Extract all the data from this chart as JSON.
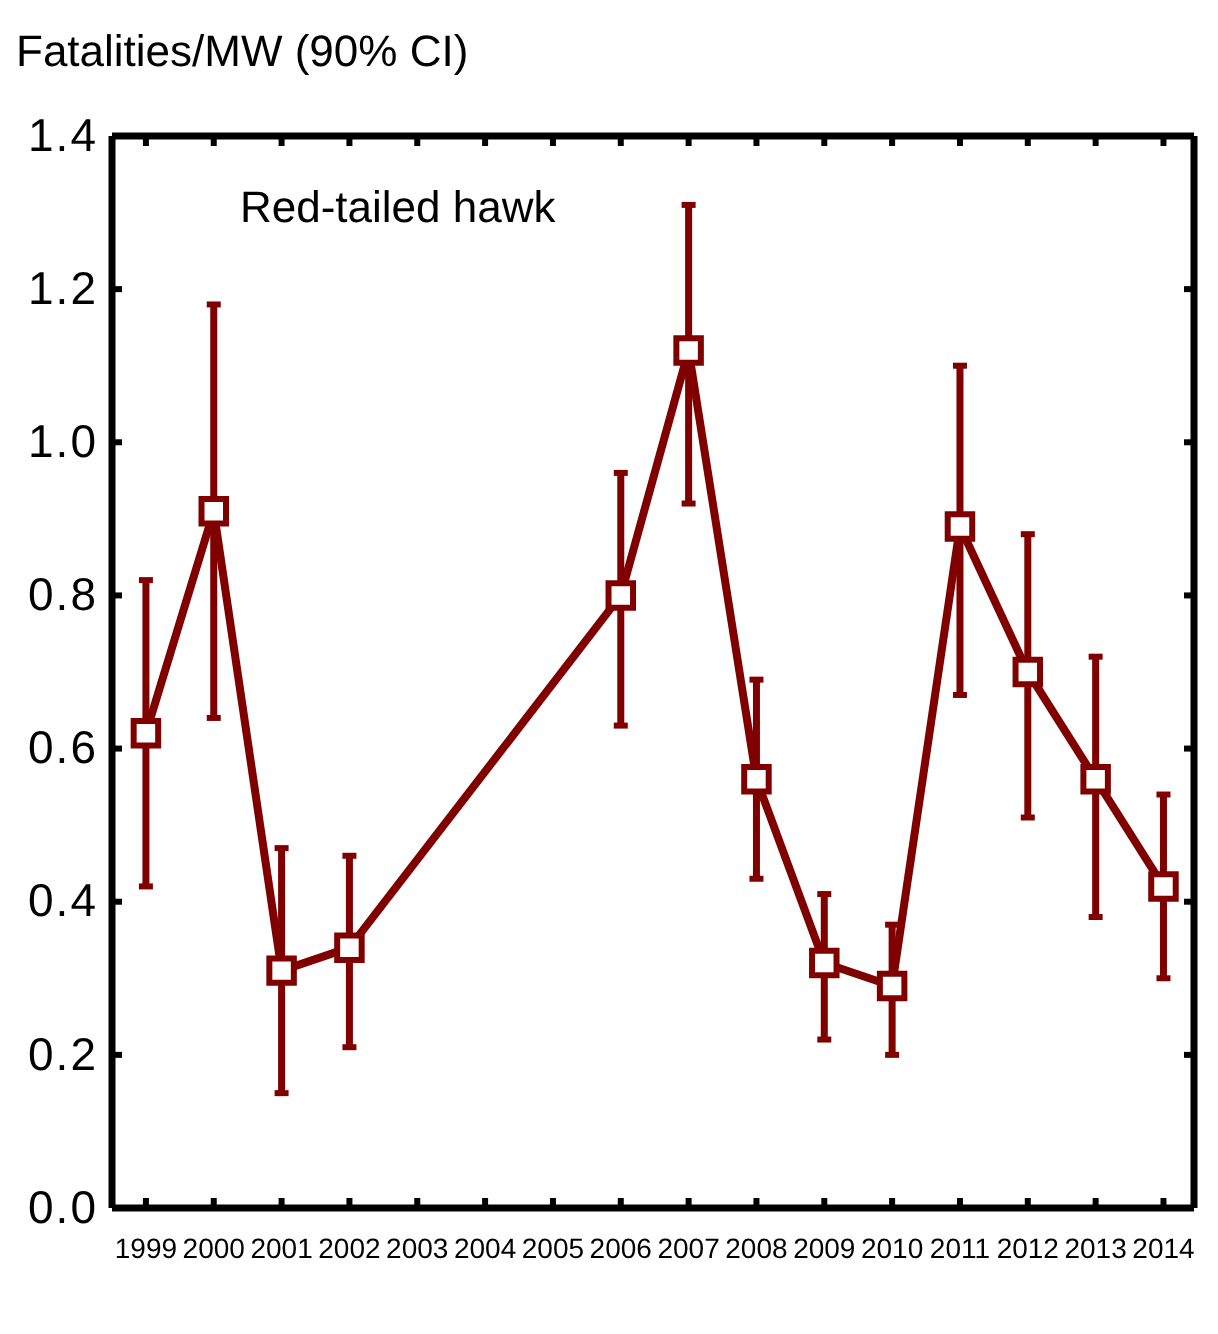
{
  "chart_data": {
    "type": "line",
    "ylabel": "Fatalities/MW (90% CI)",
    "annotations": [
      "Red-tailed hawk"
    ],
    "x": [
      1999,
      2000,
      2001,
      2002,
      2006,
      2007,
      2008,
      2009,
      2010,
      2011,
      2012,
      2013,
      2014
    ],
    "values": [
      0.62,
      0.91,
      0.31,
      0.34,
      0.8,
      1.12,
      0.56,
      0.32,
      0.29,
      0.89,
      0.7,
      0.56,
      0.42
    ],
    "errors": [
      [
        0.42,
        0.82
      ],
      [
        0.64,
        1.18
      ],
      [
        0.15,
        0.47
      ],
      [
        0.21,
        0.46
      ],
      [
        0.63,
        0.96
      ],
      [
        0.92,
        1.31
      ],
      [
        0.43,
        0.69
      ],
      [
        0.22,
        0.41
      ],
      [
        0.2,
        0.37
      ],
      [
        0.67,
        1.1
      ],
      [
        0.51,
        0.88
      ],
      [
        0.38,
        0.72
      ],
      [
        0.3,
        0.54
      ]
    ],
    "color": "#800000",
    "marker": "square",
    "xlim": [
      1998.5,
      2014.45
    ],
    "xticks": [
      1999,
      2000,
      2001,
      2002,
      2003,
      2004,
      2005,
      2006,
      2007,
      2008,
      2009,
      2010,
      2011,
      2012,
      2013,
      2014
    ],
    "ylim": [
      0,
      1.4
    ],
    "yticks": [
      {
        "value": 0,
        "label": "0.0"
      },
      0.2,
      0.4,
      0.6,
      0.8,
      {
        "value": 1,
        "label": "1.0"
      },
      1.2,
      1.4
    ]
  }
}
